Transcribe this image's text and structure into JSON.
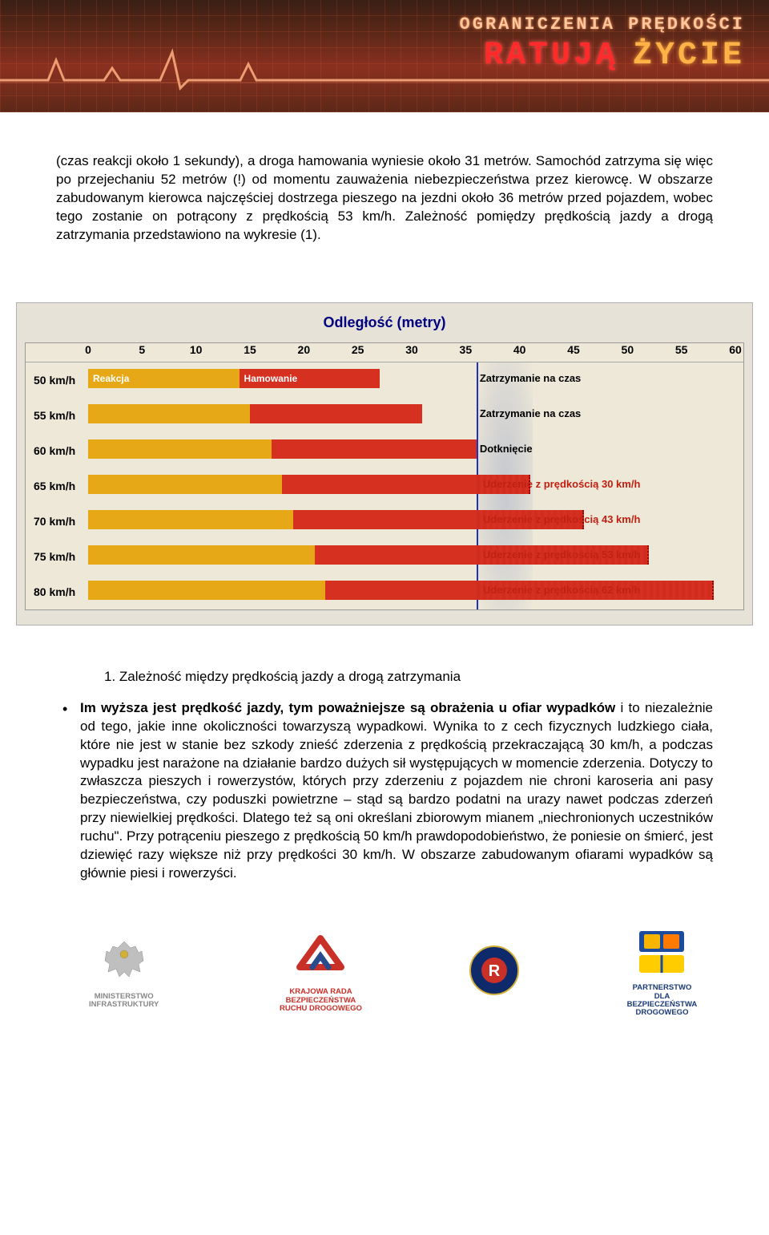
{
  "banner": {
    "line1": "OGRANICZENIA PRĘDKOŚCI",
    "line2_red": "RATUJĄ",
    "line2_orange": "ŻYCIE",
    "bg_dark": "#3a1f15",
    "bg_mid": "#8b3020",
    "pulse_color": "#ff9966"
  },
  "para1": "(czas reakcji około 1 sekundy), a droga hamowania wyniesie około 31 metrów. Samochód zatrzyma się więc po przejechaniu 52 metrów (!) od momentu zauważenia niebezpieczeństwa przez kierowcę. W obszarze zabudowanym kierowca najczęściej dostrzega pieszego na jezdni około 36 metrów przed pojazdem, wobec tego zostanie on potrącony z prędkością 53 km/h. Zależność pomiędzy prędkością jazdy a drogą zatrzymania przedstawiono na wykresie (1).",
  "chart": {
    "title": "Odległość (metry)",
    "type": "bar",
    "background_color": "#eee8d8",
    "border_color": "#999999",
    "title_color": "#000080",
    "title_fontsize": 18,
    "label_fontsize": 14,
    "x_min": 0,
    "x_max": 60,
    "x_tick_step": 5,
    "ticks": [
      "0",
      "5",
      "10",
      "15",
      "20",
      "25",
      "30",
      "35",
      "40",
      "45",
      "50",
      "55",
      "60"
    ],
    "pedestrian_at": 36,
    "pedestrian_line_color": "#2030c0",
    "reaction_color": "#e6a817",
    "braking_color": "#d63020",
    "reaction_label": "Reakcja",
    "braking_label": "Hamowanie",
    "outcome_color_ok": "#000000",
    "outcome_color_hit": "#c02010",
    "rows": [
      {
        "speed": "50 km/h",
        "react_end": 14,
        "brake_end": 27,
        "outcome": "Zatrzymanie na czas",
        "hit": false
      },
      {
        "speed": "55 km/h",
        "react_end": 15,
        "brake_end": 31,
        "outcome": "Zatrzymanie na czas",
        "hit": false
      },
      {
        "speed": "60 km/h",
        "react_end": 17,
        "brake_end": 36,
        "outcome": "Dotknięcie",
        "hit": false
      },
      {
        "speed": "65 km/h",
        "react_end": 18,
        "brake_end": 41,
        "outcome": "Uderzenie z prędkością 30 km/h",
        "hit": true
      },
      {
        "speed": "70 km/h",
        "react_end": 19,
        "brake_end": 46,
        "outcome": "Uderzenie z prędkością 43 km/h",
        "hit": true
      },
      {
        "speed": "75 km/h",
        "react_end": 21,
        "brake_end": 52,
        "outcome": "Uderzenie z prędkością 53 km/h",
        "hit": true
      },
      {
        "speed": "80 km/h",
        "react_end": 22,
        "brake_end": 58,
        "outcome": "Uderzenie z prędkością 62 km/h",
        "hit": true
      }
    ]
  },
  "chart_caption": "1. Zależność między prędkością jazdy a drogą zatrzymania",
  "bullet_lead_bold": "Im wyższa jest prędkość jazdy, tym poważniejsze są obrażenia u ofiar wypadków",
  "bullet_body": " i to niezależnie od tego, jakie inne okoliczności towarzyszą wypadkowi. Wynika to z cech fizycznych ludzkiego ciała, które nie jest w stanie bez szkody znieść zderzenia z prędkością przekraczającą 30 km/h, a podczas wypadku jest narażone na działanie bardzo dużych sił występujących w momencie zderzenia. Dotyczy to zwłaszcza pieszych i rowerzystów, których przy zderzeniu z pojazdem nie chroni karoseria ani pasy bezpieczeństwa, czy poduszki powietrzne – stąd są bardzo podatni na urazy nawet podczas zderzeń przy niewielkiej prędkości. Dlatego też są oni określani zbiorowym mianem „niechronionych uczestników ruchu\". Przy potrąceniu pieszego z prędkością 50 km/h prawdopodobieństwo, że poniesie on śmierć, jest dziewięć razy większe niż przy prędkości 30 km/h. W obszarze zabudowanym ofiarami wypadków są głównie piesi i rowerzyści.",
  "footer": {
    "logos": [
      {
        "name": "ministerstwo-infrastruktury",
        "caption": "MINISTERSTWO INFRASTRUKTURY",
        "color": "#888888"
      },
      {
        "name": "krbrd",
        "caption": "KRAJOWA RADA\nBEZPIECZEŃSTWA\nRUCHU DROGOWEGO",
        "color": "#c83028"
      },
      {
        "name": "policja",
        "caption": "",
        "color": "#1a3a7a"
      },
      {
        "name": "pbrd",
        "caption": "PARTNERSTWO\nDLA\nBEZPIECZEŃSTWA\nDROGOWEGO",
        "color": "#1a3a7a"
      }
    ]
  }
}
